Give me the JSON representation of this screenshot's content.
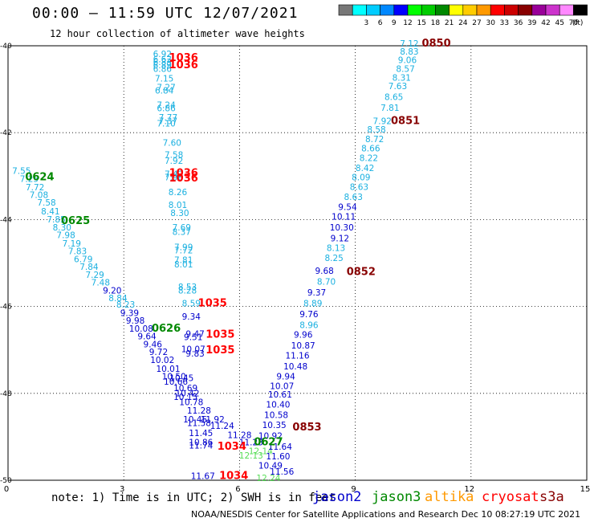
{
  "title": "00:00 – 11:59 UTC 12/07/2021",
  "subtitle": "12 hour collection of altimeter wave heights",
  "footnote": "note: 1) Time is in UTC; 2) SWH is in feet",
  "credit": "NOAA/NESDIS Center for Satellite Applications and Research   Dec 10 08:27:19 UTC 2021",
  "satellites": [
    {
      "name": "jason2",
      "color": "#0000cc"
    },
    {
      "name": "jason3",
      "color": "#008800"
    },
    {
      "name": "altika",
      "color": "#ff9900"
    },
    {
      "name": "cryosat",
      "color": "#ff0000"
    },
    {
      "name": "s3a",
      "color": "#880000"
    }
  ],
  "colorbar": {
    "unit": "(ft)",
    "bins": [
      {
        "color": "#777777",
        "label": ""
      },
      {
        "color": "#00ffff",
        "label": "3"
      },
      {
        "color": "#00ccff",
        "label": "6"
      },
      {
        "color": "#0088ff",
        "label": "9"
      },
      {
        "color": "#0000ff",
        "label": "12"
      },
      {
        "color": "#00ff00",
        "label": "15"
      },
      {
        "color": "#00cc00",
        "label": "18"
      },
      {
        "color": "#008800",
        "label": "21"
      },
      {
        "color": "#ffff00",
        "label": "24"
      },
      {
        "color": "#ffcc00",
        "label": "27"
      },
      {
        "color": "#ff9900",
        "label": "30"
      },
      {
        "color": "#ff0000",
        "label": "33"
      },
      {
        "color": "#cc0000",
        "label": "36"
      },
      {
        "color": "#880000",
        "label": "39"
      },
      {
        "color": "#990099",
        "label": "42"
      },
      {
        "color": "#cc33cc",
        "label": "45"
      },
      {
        "color": "#ff88ff",
        "label": "70"
      },
      {
        "color": "#000000",
        "label": ""
      }
    ]
  },
  "map": {
    "lon_range": [
      0,
      15
    ],
    "lat_range": [
      -50,
      -40
    ],
    "lon_ticks": [
      {
        "value": 0,
        "label": "0"
      },
      {
        "value": 3,
        "label": "3"
      },
      {
        "value": 6,
        "label": "6"
      },
      {
        "value": 9,
        "label": "9"
      },
      {
        "value": 12,
        "label": "12"
      },
      {
        "value": 15,
        "label": "15"
      }
    ],
    "lat_ticks": [
      {
        "value": -40,
        "label": "-40"
      },
      {
        "value": -42,
        "label": "-42"
      },
      {
        "value": -44,
        "label": "-44"
      },
      {
        "value": -46,
        "label": "-46"
      },
      {
        "value": -48,
        "label": "-48"
      },
      {
        "value": -50,
        "label": "-50"
      }
    ],
    "time_labels": [
      {
        "text": "1036",
        "lon": 4.55,
        "lat": -40.35,
        "color": "#ff0000"
      },
      {
        "text": "1036",
        "lon": 4.55,
        "lat": -40.52,
        "color": "#ff0000"
      },
      {
        "text": "1036",
        "lon": 4.55,
        "lat": -43.0,
        "color": "#ff0000"
      },
      {
        "text": "1036",
        "lon": 4.55,
        "lat": -43.12,
        "color": "#ff0000"
      },
      {
        "text": "1035",
        "lon": 5.3,
        "lat": -46.0,
        "color": "#ff0000"
      },
      {
        "text": "1035",
        "lon": 5.5,
        "lat": -46.72,
        "color": "#ff0000"
      },
      {
        "text": "1035",
        "lon": 5.5,
        "lat": -47.08,
        "color": "#ff0000"
      },
      {
        "text": "1034",
        "lon": 5.8,
        "lat": -49.3,
        "color": "#ff0000"
      },
      {
        "text": "1034",
        "lon": 5.85,
        "lat": -49.97,
        "color": "#ff0000"
      },
      {
        "text": "0624",
        "lon": 0.82,
        "lat": -43.1,
        "color": "#008800"
      },
      {
        "text": "0625",
        "lon": 1.75,
        "lat": -44.1,
        "color": "#008800"
      },
      {
        "text": "0626",
        "lon": 4.1,
        "lat": -46.58,
        "color": "#008800"
      },
      {
        "text": "0627",
        "lon": 6.75,
        "lat": -49.2,
        "color": "#008800"
      },
      {
        "text": "0850",
        "lon": 11.1,
        "lat": -40.02,
        "color": "#880000"
      },
      {
        "text": "0851",
        "lon": 10.3,
        "lat": -41.8,
        "color": "#880000"
      },
      {
        "text": "0852",
        "lon": 9.15,
        "lat": -45.28,
        "color": "#880000"
      },
      {
        "text": "0853",
        "lon": 7.75,
        "lat": -48.85,
        "color": "#880000"
      }
    ],
    "swh_labels": [
      {
        "text": "6.92",
        "lon": 4.0,
        "lat": -40.26,
        "color": "#1ab0e0"
      },
      {
        "text": "6.62",
        "lon": 4.0,
        "lat": -40.38,
        "color": "#1ab0e0"
      },
      {
        "text": "6.83",
        "lon": 4.0,
        "lat": -40.44,
        "color": "#1ab0e0"
      },
      {
        "text": "6.89",
        "lon": 4.0,
        "lat": -40.52,
        "color": "#1ab0e0"
      },
      {
        "text": "6.86",
        "lon": 4.0,
        "lat": -40.6,
        "color": "#1ab0e0"
      },
      {
        "text": "7.15",
        "lon": 4.05,
        "lat": -40.82,
        "color": "#1ab0e0"
      },
      {
        "text": "7.27",
        "lon": 4.1,
        "lat": -41.03,
        "color": "#1ab0e0"
      },
      {
        "text": "6.84",
        "lon": 4.05,
        "lat": -41.1,
        "color": "#1ab0e0"
      },
      {
        "text": "7.24",
        "lon": 4.1,
        "lat": -41.43,
        "color": "#1ab0e0"
      },
      {
        "text": "6.86",
        "lon": 4.1,
        "lat": -41.51,
        "color": "#1ab0e0"
      },
      {
        "text": "7.77",
        "lon": 4.15,
        "lat": -41.72,
        "color": "#1ab0e0"
      },
      {
        "text": "7.37",
        "lon": 4.15,
        "lat": -41.8,
        "color": "#1ab0e0"
      },
      {
        "text": "7.10",
        "lon": 4.1,
        "lat": -41.86,
        "color": "#1ab0e0"
      },
      {
        "text": "7.60",
        "lon": 4.25,
        "lat": -42.3,
        "color": "#1ab0e0"
      },
      {
        "text": "7.58",
        "lon": 4.3,
        "lat": -42.58,
        "color": "#1ab0e0"
      },
      {
        "text": "7.92",
        "lon": 4.3,
        "lat": -42.72,
        "color": "#1ab0e0"
      },
      {
        "text": "7.42",
        "lon": 4.3,
        "lat": -43.02,
        "color": "#1ab0e0"
      },
      {
        "text": "7.98",
        "lon": 4.3,
        "lat": -43.1,
        "color": "#1ab0e0"
      },
      {
        "text": "8.26",
        "lon": 4.4,
        "lat": -43.44,
        "color": "#1ab0e0"
      },
      {
        "text": "8.01",
        "lon": 4.4,
        "lat": -43.73,
        "color": "#1ab0e0"
      },
      {
        "text": "8.30",
        "lon": 4.45,
        "lat": -43.92,
        "color": "#1ab0e0"
      },
      {
        "text": "7.69",
        "lon": 4.5,
        "lat": -44.25,
        "color": "#1ab0e0"
      },
      {
        "text": "8.37",
        "lon": 4.5,
        "lat": -44.35,
        "color": "#1ab0e0"
      },
      {
        "text": "7.99",
        "lon": 4.55,
        "lat": -44.7,
        "color": "#1ab0e0"
      },
      {
        "text": "7.72",
        "lon": 4.55,
        "lat": -44.78,
        "color": "#1ab0e0"
      },
      {
        "text": "7.81",
        "lon": 4.55,
        "lat": -45.0,
        "color": "#1ab0e0"
      },
      {
        "text": "8.01",
        "lon": 4.55,
        "lat": -45.1,
        "color": "#1ab0e0"
      },
      {
        "text": "8.53",
        "lon": 4.65,
        "lat": -45.62,
        "color": "#1ab0e0"
      },
      {
        "text": "8.28",
        "lon": 4.65,
        "lat": -45.7,
        "color": "#1ab0e0"
      },
      {
        "text": "8.59",
        "lon": 4.75,
        "lat": -46.0,
        "color": "#1ab0e0"
      },
      {
        "text": "9.34",
        "lon": 4.75,
        "lat": -46.3,
        "color": "#0000cc"
      },
      {
        "text": "9.47",
        "lon": 4.85,
        "lat": -46.7,
        "color": "#0000cc"
      },
      {
        "text": "9.51",
        "lon": 4.8,
        "lat": -46.77,
        "color": "#0000cc"
      },
      {
        "text": "10.07",
        "lon": 4.8,
        "lat": -47.05,
        "color": "#0000cc"
      },
      {
        "text": "9.83",
        "lon": 4.85,
        "lat": -47.15,
        "color": "#0000cc"
      },
      {
        "text": "7.55",
        "lon": 0.35,
        "lat": -42.95,
        "color": "#1ab0e0"
      },
      {
        "text": "7.25",
        "lon": 0.55,
        "lat": -43.13,
        "color": "#1ab0e0"
      },
      {
        "text": "7.72",
        "lon": 0.7,
        "lat": -43.33,
        "color": "#1ab0e0"
      },
      {
        "text": "7.08",
        "lon": 0.8,
        "lat": -43.5,
        "color": "#1ab0e0"
      },
      {
        "text": "7.58",
        "lon": 1.0,
        "lat": -43.68,
        "color": "#1ab0e0"
      },
      {
        "text": "8.41",
        "lon": 1.1,
        "lat": -43.88,
        "color": "#1ab0e0"
      },
      {
        "text": "7.85",
        "lon": 1.25,
        "lat": -44.07,
        "color": "#1ab0e0"
      },
      {
        "text": "8.30",
        "lon": 1.4,
        "lat": -44.25,
        "color": "#1ab0e0"
      },
      {
        "text": "7.98",
        "lon": 1.5,
        "lat": -44.43,
        "color": "#1ab0e0"
      },
      {
        "text": "7.19",
        "lon": 1.65,
        "lat": -44.62,
        "color": "#1ab0e0"
      },
      {
        "text": "7.83",
        "lon": 1.8,
        "lat": -44.8,
        "color": "#1ab0e0"
      },
      {
        "text": "6.79",
        "lon": 1.95,
        "lat": -44.98,
        "color": "#1ab0e0"
      },
      {
        "text": "7.84",
        "lon": 2.1,
        "lat": -45.16,
        "color": "#1ab0e0"
      },
      {
        "text": "7.29",
        "lon": 2.25,
        "lat": -45.34,
        "color": "#1ab0e0"
      },
      {
        "text": "7.48",
        "lon": 2.4,
        "lat": -45.52,
        "color": "#1ab0e0"
      },
      {
        "text": "9.20",
        "lon": 2.7,
        "lat": -45.7,
        "color": "#0000cc"
      },
      {
        "text": "8.84",
        "lon": 2.85,
        "lat": -45.88,
        "color": "#1ab0e0"
      },
      {
        "text": "8.23",
        "lon": 3.05,
        "lat": -46.03,
        "color": "#1ab0e0"
      },
      {
        "text": "9.39",
        "lon": 3.15,
        "lat": -46.22,
        "color": "#0000cc"
      },
      {
        "text": "9.98",
        "lon": 3.3,
        "lat": -46.4,
        "color": "#0000cc"
      },
      {
        "text": "10.08",
        "lon": 3.45,
        "lat": -46.58,
        "color": "#0000cc"
      },
      {
        "text": "9.64",
        "lon": 3.6,
        "lat": -46.76,
        "color": "#0000cc"
      },
      {
        "text": "9.46",
        "lon": 3.75,
        "lat": -46.94,
        "color": "#0000cc"
      },
      {
        "text": "9.72",
        "lon": 3.9,
        "lat": -47.12,
        "color": "#0000cc"
      },
      {
        "text": "10.02",
        "lon": 4.0,
        "lat": -47.3,
        "color": "#0000cc"
      },
      {
        "text": "10.01",
        "lon": 4.15,
        "lat": -47.5,
        "color": "#0000cc"
      },
      {
        "text": "10.50",
        "lon": 4.3,
        "lat": -47.68,
        "color": "#0000cc"
      },
      {
        "text": "10.45",
        "lon": 4.5,
        "lat": -47.72,
        "color": "#0000cc"
      },
      {
        "text": "10.66",
        "lon": 4.35,
        "lat": -47.8,
        "color": "#0000cc"
      },
      {
        "text": "10.69",
        "lon": 4.6,
        "lat": -47.95,
        "color": "#0000cc"
      },
      {
        "text": "10.42",
        "lon": 4.65,
        "lat": -48.07,
        "color": "#0000cc"
      },
      {
        "text": "10.15",
        "lon": 4.6,
        "lat": -48.15,
        "color": "#0000cc"
      },
      {
        "text": "10.78",
        "lon": 4.75,
        "lat": -48.27,
        "color": "#0000cc"
      },
      {
        "text": "11.28",
        "lon": 4.95,
        "lat": -48.47,
        "color": "#0000cc"
      },
      {
        "text": "10.45",
        "lon": 4.85,
        "lat": -48.67,
        "color": "#0000cc"
      },
      {
        "text": "11.92",
        "lon": 5.3,
        "lat": -48.67,
        "color": "#0000cc"
      },
      {
        "text": "11.58",
        "lon": 4.95,
        "lat": -48.75,
        "color": "#0000cc"
      },
      {
        "text": "11.24",
        "lon": 5.55,
        "lat": -48.82,
        "color": "#0000cc"
      },
      {
        "text": "11.45",
        "lon": 5.0,
        "lat": -48.98,
        "color": "#0000cc"
      },
      {
        "text": "11.28",
        "lon": 6.0,
        "lat": -49.03,
        "color": "#0000cc"
      },
      {
        "text": "10.86",
        "lon": 5.0,
        "lat": -49.2,
        "color": "#0000cc"
      },
      {
        "text": "11.74",
        "lon": 5.0,
        "lat": -49.27,
        "color": "#0000cc"
      },
      {
        "text": "11.23",
        "lon": 6.3,
        "lat": -49.2,
        "color": "#0000cc"
      },
      {
        "text": "12.14",
        "lon": 6.55,
        "lat": -49.4,
        "color": "#55dd55"
      },
      {
        "text": "12.13",
        "lon": 6.3,
        "lat": -49.5,
        "color": "#55dd55"
      },
      {
        "text": "11.64",
        "lon": 7.05,
        "lat": -49.3,
        "color": "#0000cc"
      },
      {
        "text": "11.60",
        "lon": 7.0,
        "lat": -49.52,
        "color": "#0000cc"
      },
      {
        "text": "10.49",
        "lon": 6.8,
        "lat": -49.73,
        "color": "#0000cc"
      },
      {
        "text": "11.56",
        "lon": 7.1,
        "lat": -49.87,
        "color": "#0000cc"
      },
      {
        "text": "12.24",
        "lon": 6.75,
        "lat": -50.02,
        "color": "#55dd55"
      },
      {
        "text": "11.67",
        "lon": 5.05,
        "lat": -49.97,
        "color": "#0000cc"
      },
      {
        "text": "7.12",
        "lon": 10.4,
        "lat": -40.02,
        "color": "#1ab0e0"
      },
      {
        "text": "8.83",
        "lon": 10.4,
        "lat": -40.2,
        "color": "#1ab0e0"
      },
      {
        "text": "9.06",
        "lon": 10.35,
        "lat": -40.4,
        "color": "#1ab0e0"
      },
      {
        "text": "8.57",
        "lon": 10.3,
        "lat": -40.6,
        "color": "#1ab0e0"
      },
      {
        "text": "8.31",
        "lon": 10.2,
        "lat": -40.8,
        "color": "#1ab0e0"
      },
      {
        "text": "7.63",
        "lon": 10.1,
        "lat": -41.0,
        "color": "#1ab0e0"
      },
      {
        "text": "8.65",
        "lon": 10.0,
        "lat": -41.25,
        "color": "#1ab0e0"
      },
      {
        "text": "7.81",
        "lon": 9.9,
        "lat": -41.5,
        "color": "#1ab0e0"
      },
      {
        "text": "7.92",
        "lon": 9.7,
        "lat": -41.8,
        "color": "#1ab0e0"
      },
      {
        "text": "8.58",
        "lon": 9.55,
        "lat": -42.0,
        "color": "#1ab0e0"
      },
      {
        "text": "8.72",
        "lon": 9.5,
        "lat": -42.22,
        "color": "#1ab0e0"
      },
      {
        "text": "8.66",
        "lon": 9.4,
        "lat": -42.43,
        "color": "#1ab0e0"
      },
      {
        "text": "8.22",
        "lon": 9.35,
        "lat": -42.65,
        "color": "#1ab0e0"
      },
      {
        "text": "8.42",
        "lon": 9.25,
        "lat": -42.88,
        "color": "#1ab0e0"
      },
      {
        "text": "8.09",
        "lon": 9.15,
        "lat": -43.1,
        "color": "#1ab0e0"
      },
      {
        "text": "8.63",
        "lon": 9.1,
        "lat": -43.32,
        "color": "#1ab0e0"
      },
      {
        "text": "8.63",
        "lon": 8.95,
        "lat": -43.55,
        "color": "#1ab0e0"
      },
      {
        "text": "9.54",
        "lon": 8.8,
        "lat": -43.78,
        "color": "#0000cc"
      },
      {
        "text": "10.11",
        "lon": 8.7,
        "lat": -44.0,
        "color": "#0000cc"
      },
      {
        "text": "10.30",
        "lon": 8.65,
        "lat": -44.25,
        "color": "#0000cc"
      },
      {
        "text": "9.12",
        "lon": 8.6,
        "lat": -44.5,
        "color": "#0000cc"
      },
      {
        "text": "8.13",
        "lon": 8.5,
        "lat": -44.72,
        "color": "#1ab0e0"
      },
      {
        "text": "8.25",
        "lon": 8.45,
        "lat": -44.95,
        "color": "#1ab0e0"
      },
      {
        "text": "9.68",
        "lon": 8.2,
        "lat": -45.25,
        "color": "#0000cc"
      },
      {
        "text": "8.70",
        "lon": 8.25,
        "lat": -45.5,
        "color": "#1ab0e0"
      },
      {
        "text": "9.37",
        "lon": 8.0,
        "lat": -45.75,
        "color": "#0000cc"
      },
      {
        "text": "8.89",
        "lon": 7.9,
        "lat": -46.0,
        "color": "#1ab0e0"
      },
      {
        "text": "9.76",
        "lon": 7.8,
        "lat": -46.25,
        "color": "#0000cc"
      },
      {
        "text": "8.96",
        "lon": 7.8,
        "lat": -46.5,
        "color": "#1ab0e0"
      },
      {
        "text": "9.96",
        "lon": 7.65,
        "lat": -46.72,
        "color": "#0000cc"
      },
      {
        "text": "10.87",
        "lon": 7.65,
        "lat": -46.97,
        "color": "#0000cc"
      },
      {
        "text": "11.16",
        "lon": 7.5,
        "lat": -47.2,
        "color": "#0000cc"
      },
      {
        "text": "10.48",
        "lon": 7.45,
        "lat": -47.45,
        "color": "#0000cc"
      },
      {
        "text": "9.94",
        "lon": 7.2,
        "lat": -47.68,
        "color": "#0000cc"
      },
      {
        "text": "10.07",
        "lon": 7.1,
        "lat": -47.9,
        "color": "#0000cc"
      },
      {
        "text": "10.61",
        "lon": 7.05,
        "lat": -48.1,
        "color": "#0000cc"
      },
      {
        "text": "10.40",
        "lon": 7.0,
        "lat": -48.33,
        "color": "#0000cc"
      },
      {
        "text": "10.58",
        "lon": 6.95,
        "lat": -48.57,
        "color": "#0000cc"
      },
      {
        "text": "10.35",
        "lon": 6.9,
        "lat": -48.8,
        "color": "#0000cc"
      },
      {
        "text": "10.92",
        "lon": 6.8,
        "lat": -49.05,
        "color": "#0000cc"
      }
    ]
  }
}
